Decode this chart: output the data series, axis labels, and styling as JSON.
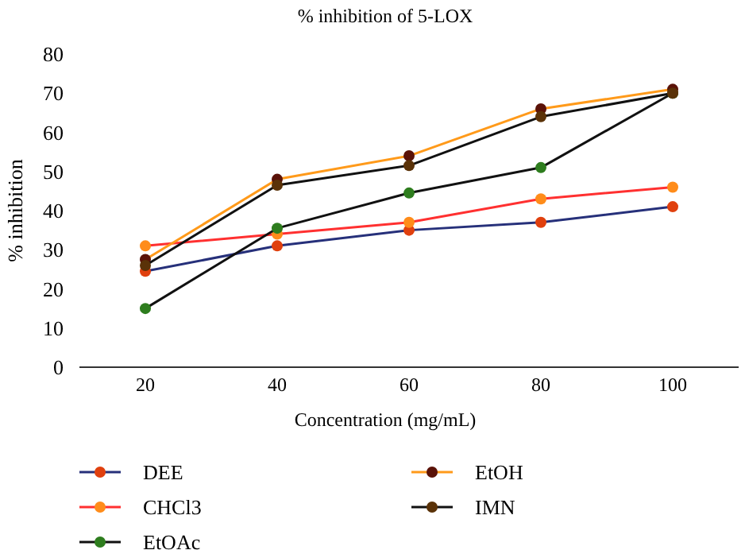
{
  "chart_data": {
    "type": "line",
    "title": "% inhibition of 5-LOX",
    "xlabel": "Concentration (mg/mL)",
    "ylabel": "% inhibition",
    "categories": [
      "20",
      "40",
      "60",
      "80",
      "100"
    ],
    "ylim": [
      0,
      80
    ],
    "yticks": [
      0,
      10,
      20,
      30,
      40,
      50,
      60,
      70,
      80
    ],
    "grid": false,
    "legend": "bottom",
    "marker": "circle",
    "line_style": "solid",
    "series": [
      {
        "name": "DEE",
        "color": "#26307a",
        "colors": [
          "#e0400e",
          "#e0400e",
          "#e0400e",
          "#e0400e",
          "#e0400e"
        ],
        "values": [
          24.5,
          31,
          35,
          37,
          41
        ]
      },
      {
        "name": "CHCl3",
        "color": "#ff3030",
        "colors": [
          "#ff8c1a",
          "#ff8c1a",
          "#ff8c1a",
          "#ff8c1a",
          "#ff8c1a"
        ],
        "values": [
          31,
          34,
          37,
          43,
          46
        ]
      },
      {
        "name": "EtOAc",
        "color": "#111111",
        "colors": [
          "#2e7d1e",
          "#2e7d1e",
          "#2e7d1e",
          "#2e7d1e",
          "#2e7d1e"
        ],
        "values": [
          15,
          35.5,
          44.5,
          51,
          70
        ]
      },
      {
        "name": "EtOH",
        "color": "#ff9a1a",
        "colors": [
          "#5a1208",
          "#5a1208",
          "#5a1208",
          "#5a1208",
          "#5a1208"
        ],
        "values": [
          27.5,
          48,
          54,
          66,
          71
        ]
      },
      {
        "name": "IMN",
        "color": "#111111",
        "colors": [
          "#5a3208",
          "#5a3208",
          "#5a3208",
          "#5a3208",
          "#5a3208"
        ],
        "values": [
          26,
          46.5,
          51.5,
          64,
          70
        ]
      }
    ]
  }
}
